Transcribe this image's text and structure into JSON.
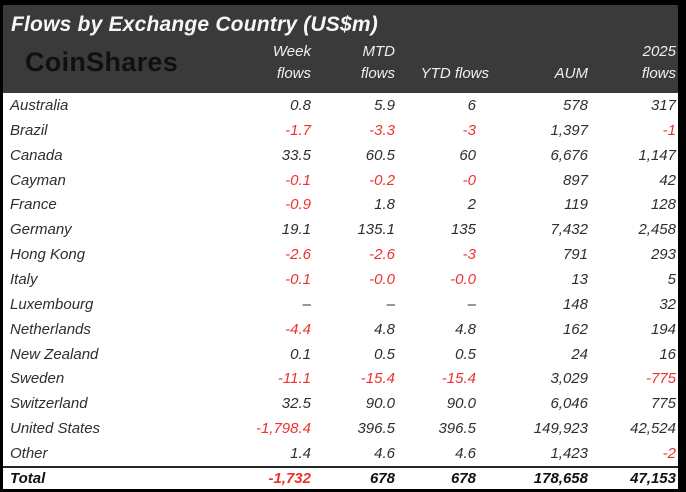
{
  "table": {
    "title": "Flows by Exchange Country (US$m)",
    "logo": "CoinShares",
    "columns": [
      {
        "line1": "Week",
        "line2": "flows"
      },
      {
        "line1": "MTD",
        "line2": "flows"
      },
      {
        "line1": "",
        "line2": "YTD flows"
      },
      {
        "line1": "",
        "line2": "AUM"
      },
      {
        "line1": "2025",
        "line2": "flows"
      }
    ],
    "rows": [
      {
        "country": "Australia",
        "week": "0.8",
        "mtd": "5.9",
        "ytd": "6",
        "aum": "578",
        "y2025": "317"
      },
      {
        "country": "Brazil",
        "week": "-1.7",
        "mtd": "-3.3",
        "ytd": "-3",
        "aum": "1,397",
        "y2025": "-1"
      },
      {
        "country": "Canada",
        "week": "33.5",
        "mtd": "60.5",
        "ytd": "60",
        "aum": "6,676",
        "y2025": "1,147"
      },
      {
        "country": "Cayman",
        "week": "-0.1",
        "mtd": "-0.2",
        "ytd": "-0",
        "aum": "897",
        "y2025": "42"
      },
      {
        "country": "France",
        "week": "-0.9",
        "mtd": "1.8",
        "ytd": "2",
        "aum": "119",
        "y2025": "128"
      },
      {
        "country": "Germany",
        "week": "19.1",
        "mtd": "135.1",
        "ytd": "135",
        "aum": "7,432",
        "y2025": "2,458"
      },
      {
        "country": "Hong Kong",
        "week": "-2.6",
        "mtd": "-2.6",
        "ytd": "-3",
        "aum": "791",
        "y2025": "293"
      },
      {
        "country": "Italy",
        "week": "-0.1",
        "mtd": "-0.0",
        "ytd": "-0.0",
        "aum": "13",
        "y2025": "5"
      },
      {
        "country": "Luxembourg",
        "week": "–",
        "mtd": "–",
        "ytd": "–",
        "aum": "148",
        "y2025": "32"
      },
      {
        "country": "Netherlands",
        "week": "-4.4",
        "mtd": "4.8",
        "ytd": "4.8",
        "aum": "162",
        "y2025": "194"
      },
      {
        "country": "New Zealand",
        "week": "0.1",
        "mtd": "0.5",
        "ytd": "0.5",
        "aum": "24",
        "y2025": "16"
      },
      {
        "country": "Sweden",
        "week": "-11.1",
        "mtd": "-15.4",
        "ytd": "-15.4",
        "aum": "3,029",
        "y2025": "-775"
      },
      {
        "country": "Switzerland",
        "week": "32.5",
        "mtd": "90.0",
        "ytd": "90.0",
        "aum": "6,046",
        "y2025": "775"
      },
      {
        "country": "United States",
        "week": "-1,798.4",
        "mtd": "396.5",
        "ytd": "396.5",
        "aum": "149,923",
        "y2025": "42,524"
      },
      {
        "country": "Other",
        "week": "1.4",
        "mtd": "4.6",
        "ytd": "4.6",
        "aum": "1,423",
        "y2025": "-2"
      }
    ],
    "total": {
      "country": "Total",
      "week": "-1,732",
      "mtd": "678",
      "ytd": "678",
      "aum": "178,658",
      "y2025": "47,153"
    }
  },
  "colors": {
    "negative": "#ee322b",
    "header_bg": "#3a3a3a",
    "header_text": "#efefef",
    "title_text": "#f7f7f7",
    "body_text": "#2e2e2e",
    "logo_text": "#101010",
    "frame_border": "#000000"
  },
  "chart_data": {
    "type": "table",
    "title": "Flows by Exchange Country (US$m)",
    "columns": [
      "Week flows",
      "MTD flows",
      "YTD flows",
      "AUM",
      "2025 flows"
    ],
    "categories": [
      "Australia",
      "Brazil",
      "Canada",
      "Cayman",
      "France",
      "Germany",
      "Hong Kong",
      "Italy",
      "Luxembourg",
      "Netherlands",
      "New Zealand",
      "Sweden",
      "Switzerland",
      "United States",
      "Other",
      "Total"
    ],
    "series": [
      {
        "name": "Week flows",
        "values": [
          0.8,
          -1.7,
          33.5,
          -0.1,
          -0.9,
          19.1,
          -2.6,
          -0.1,
          null,
          -4.4,
          0.1,
          -11.1,
          32.5,
          -1798.4,
          1.4,
          -1732
        ]
      },
      {
        "name": "MTD flows",
        "values": [
          5.9,
          -3.3,
          60.5,
          -0.2,
          1.8,
          135.1,
          -2.6,
          -0.0,
          null,
          4.8,
          0.5,
          -15.4,
          90.0,
          396.5,
          4.6,
          678
        ]
      },
      {
        "name": "YTD flows",
        "values": [
          6,
          -3,
          60,
          0,
          2,
          135,
          -3,
          -0.0,
          null,
          4.8,
          0.5,
          -15.4,
          90.0,
          396.5,
          4.6,
          678
        ]
      },
      {
        "name": "AUM",
        "values": [
          578,
          1397,
          6676,
          897,
          119,
          7432,
          791,
          13,
          148,
          162,
          24,
          3029,
          6046,
          149923,
          1423,
          178658
        ]
      },
      {
        "name": "2025 flows",
        "values": [
          317,
          -1,
          1147,
          42,
          128,
          2458,
          293,
          5,
          32,
          194,
          16,
          -775,
          775,
          42524,
          -2,
          47153
        ]
      }
    ]
  }
}
